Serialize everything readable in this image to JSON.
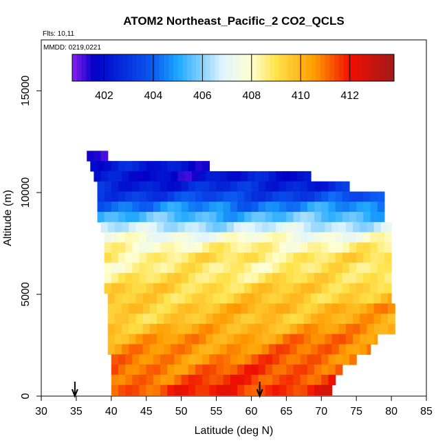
{
  "chart_data": {
    "type": "heatmap",
    "title": "ATOM2 Northeast_Pacific_2 CO2_QCLS",
    "flights_text": "Flts: 10,11",
    "date_text": "MMDD: 0219,0221",
    "xlabel": "Latitude (deg N)",
    "ylabel": "Altitude (m)",
    "xlim": [
      30,
      85
    ],
    "ylim": [
      0,
      17500
    ],
    "x_ticks": [
      30,
      35,
      40,
      45,
      50,
      55,
      60,
      65,
      70,
      75,
      80,
      85
    ],
    "y_ticks": [
      0,
      5000,
      10000,
      15000
    ],
    "colorbar": {
      "min": 400.7,
      "max": 413.8,
      "ticks": [
        402,
        404,
        406,
        408,
        410,
        412
      ],
      "tick_labels": [
        "402",
        "404",
        "406",
        "408",
        "410",
        "412"
      ]
    },
    "colors": {
      "purple": "#8a1ff0",
      "dark_blue": "#0000c8",
      "blue": "#0a5af0",
      "sky": "#1ea8ff",
      "pale": "#dff4ff",
      "cream": "#ffffd0",
      "yellow": "#ffe24a",
      "orange": "#ff9a00",
      "red": "#f01000",
      "dark_red": "#a21a1a"
    },
    "layers": [
      {
        "alt": 11800,
        "lat_min": 36.5,
        "lat_max": 39.5,
        "co2": 401.5
      },
      {
        "alt": 11300,
        "lat_min": 37.0,
        "lat_max": 54.0,
        "co2": 402.2
      },
      {
        "alt": 10800,
        "lat_min": 37.5,
        "lat_max": 68.5,
        "co2": 402.0
      },
      {
        "alt": 10300,
        "lat_min": 38.0,
        "lat_max": 74.0,
        "co2": 402.6
      },
      {
        "alt": 9800,
        "lat_min": 38.0,
        "lat_max": 79.0,
        "co2": 403.4
      },
      {
        "alt": 9300,
        "lat_min": 38.0,
        "lat_max": 79.0,
        "co2": 404.5
      },
      {
        "alt": 8800,
        "lat_min": 38.0,
        "lat_max": 79.0,
        "co2": 405.4
      },
      {
        "alt": 8300,
        "lat_min": 38.5,
        "lat_max": 80.0,
        "co2": 406.5
      },
      {
        "alt": 7800,
        "lat_min": 39.0,
        "lat_max": 80.0,
        "co2": 407.6
      },
      {
        "alt": 7300,
        "lat_min": 39.0,
        "lat_max": 80.0,
        "co2": 408.3
      },
      {
        "alt": 6800,
        "lat_min": 39.0,
        "lat_max": 80.0,
        "co2": 408.8
      },
      {
        "alt": 6300,
        "lat_min": 39.0,
        "lat_max": 80.0,
        "co2": 408.6
      },
      {
        "alt": 5800,
        "lat_min": 39.0,
        "lat_max": 80.0,
        "co2": 408.9
      },
      {
        "alt": 5300,
        "lat_min": 39.0,
        "lat_max": 80.0,
        "co2": 409.3
      },
      {
        "alt": 4800,
        "lat_min": 39.5,
        "lat_max": 80.0,
        "co2": 409.4
      },
      {
        "alt": 4300,
        "lat_min": 39.5,
        "lat_max": 80.5,
        "co2": 409.8
      },
      {
        "alt": 3800,
        "lat_min": 39.5,
        "lat_max": 80.5,
        "co2": 409.7
      },
      {
        "alt": 3300,
        "lat_min": 39.5,
        "lat_max": 80.5,
        "co2": 410.1
      },
      {
        "alt": 2800,
        "lat_min": 39.5,
        "lat_max": 78.0,
        "co2": 410.5
      },
      {
        "alt": 2300,
        "lat_min": 39.5,
        "lat_max": 77.0,
        "co2": 410.7
      },
      {
        "alt": 1800,
        "lat_min": 40.0,
        "lat_max": 75.0,
        "co2": 410.9
      },
      {
        "alt": 1300,
        "lat_min": 40.0,
        "lat_max": 73.0,
        "co2": 411.2
      },
      {
        "alt": 800,
        "lat_min": 40.0,
        "lat_max": 72.0,
        "co2": 411.4
      },
      {
        "alt": 300,
        "lat_min": 40.0,
        "lat_max": 71.5,
        "co2": 411.7
      }
    ],
    "markers": [
      {
        "lat": 34.8,
        "label": ""
      },
      {
        "lat": 61.2,
        "label": ""
      }
    ]
  }
}
